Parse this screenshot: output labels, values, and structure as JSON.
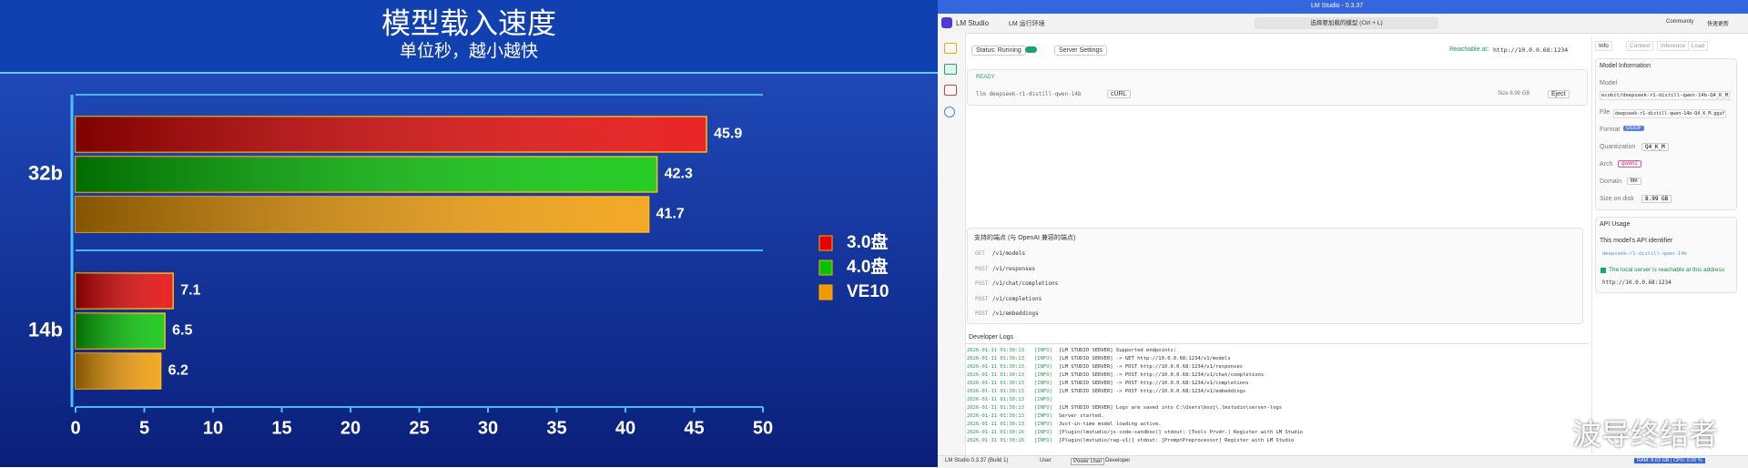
{
  "chart_data": {
    "type": "hbar",
    "title": "模型载入速度",
    "subtitle": "单位秒，越小越快",
    "categories": [
      "32b",
      "14b"
    ],
    "series": [
      {
        "name": "VE10",
        "color": "#f29a00",
        "values": [
          41.7,
          6.2
        ]
      },
      {
        "name": "4.0盘",
        "color": "#00c400",
        "values": [
          42.3,
          6.5
        ]
      },
      {
        "name": "3.0盘",
        "color": "#e60000",
        "values": [
          45.9,
          7.1
        ]
      }
    ],
    "xlim": [
      0,
      50
    ],
    "xticks": [
      0,
      5,
      10,
      15,
      20,
      25,
      30,
      35,
      40,
      45,
      50
    ],
    "legend": "right"
  },
  "app": {
    "window_title": "LM Studio - 0.3.37",
    "app_name": "LM Studio",
    "runtime_tab": "LM 运行环境",
    "model_picker": "选择要加载的模型 (Ctrl + L)",
    "community": "Community",
    "update": "快速更新",
    "status": "Status: Running",
    "server_settings": "Server Settings",
    "reachable_label": "Reachable at:",
    "reachable_url": "http://10.0.0.68:1234",
    "ready": "READY",
    "model_id": "llm deepseek-r1-distill-qwen-14b",
    "curl": "cURL",
    "size": "Size  8.99 GB",
    "eject": "Eject",
    "endpoints_title": "支持的端点 (与 OpenAI 兼容的端点)",
    "endpoints": [
      {
        "method": "GET",
        "path": "/v1/models"
      },
      {
        "method": "POST",
        "path": "/v1/responses"
      },
      {
        "method": "POST",
        "path": "/v1/chat/completions"
      },
      {
        "method": "POST",
        "path": "/v1/completions"
      },
      {
        "method": "POST",
        "path": "/v1/embeddings"
      }
    ],
    "logs_title": "Developer Logs",
    "logs": [
      {
        "time": "2026-01-11 01:30:13",
        "level": "[INFO]",
        "msg": "[LM STUDIO SERVER] Supported endpoints:"
      },
      {
        "time": "2026-01-11 01:30:13",
        "level": "[INFO]",
        "msg": "[LM STUDIO SERVER] ->  GET  http://10.0.0.68:1234/v1/models"
      },
      {
        "time": "2026-01-11 01:30:13",
        "level": "[INFO]",
        "msg": "[LM STUDIO SERVER] ->  POST http://10.0.0.68:1234/v1/responses"
      },
      {
        "time": "2026-01-11 01:30:13",
        "level": "[INFO]",
        "msg": "[LM STUDIO SERVER] ->  POST http://10.0.0.68:1234/v1/chat/completions"
      },
      {
        "time": "2026-01-11 01:30:13",
        "level": "[INFO]",
        "msg": "[LM STUDIO SERVER] ->  POST http://10.0.0.68:1234/v1/completions"
      },
      {
        "time": "2026-01-11 01:30:13",
        "level": "[INFO]",
        "msg": "[LM STUDIO SERVER] ->  POST http://10.0.0.68:1234/v1/embeddings"
      },
      {
        "time": "2026-01-11 01:30:13",
        "level": "[INFO]",
        "msg": ""
      },
      {
        "time": "2026-01-11 01:30:13",
        "level": "[INFO]",
        "msg": "[LM STUDIO SERVER] Logs are saved into C:\\Users\\bozj\\.lmstudio\\server-logs"
      },
      {
        "time": "2026-01-11 01:30:13",
        "level": "[INFO]",
        "msg": "Server started."
      },
      {
        "time": "2026-01-11 01:30:13",
        "level": "[INFO]",
        "msg": "Just-in-time model loading active."
      },
      {
        "time": "2026-01-11 01:30:16",
        "level": "[INFO]",
        "msg": "[Plugin(lmstudio/js-code-sandbox)] stdout: [Tools Prvdr.] Register with LM Studio"
      },
      {
        "time": "2026-01-11 01:30:16",
        "level": "[INFO]",
        "msg": "[Plugin(lmstudio/rag-v1)] stdout: [PromptPreprocessor] Register with LM Studio"
      }
    ],
    "tabs": [
      "Info",
      "Context",
      "Inference",
      "Load"
    ],
    "model_info_title": "Model Information",
    "model_label": "Model",
    "model_value": "ecobit/deepseek-r1-distill-qwen-14b-Q4_K_M",
    "file_label": "File",
    "file_value": "deepseek-r1-distill-qwen-14b-Q4_K_M.gguf",
    "format_label": "Format",
    "format_value": "GGUF",
    "quant_label": "Quantization",
    "quant_value": "Q4_K_M",
    "arch_label": "Arch",
    "arch_value": "qwen2",
    "domain_label": "Domain",
    "domain_value": "llm",
    "disk_label": "Size on disk",
    "disk_value": "8.99 GB",
    "api_title": "API Usage",
    "api_id_label": "This model's API identifier",
    "api_id": "deepseek-r1-distill-qwen-14b",
    "api_reach": "The local server is reachable at this address",
    "api_url": "http://10.0.0.68:1234",
    "footer_app": "LM Studio 0.3.37 (Build 1)",
    "modes": [
      "User",
      "Power User",
      "Developer"
    ],
    "footer_stats": "RAM: 8.63 GB | CPU: 0.00 %",
    "watermark": "波导终结者"
  }
}
